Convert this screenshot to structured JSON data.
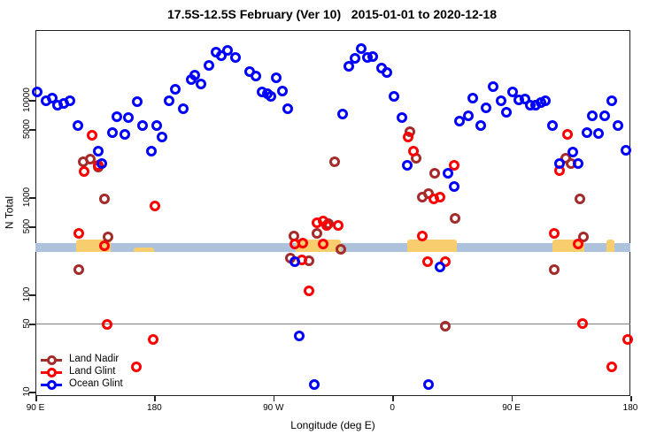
{
  "title": "17.5S-12.5S February (Ver 10)   2015-01-01 to 2020-12-18",
  "axes": {
    "x": {
      "label": "Longitude (deg E)",
      "ticks": [
        {
          "deg": 0,
          "label": "90 E"
        },
        {
          "deg": 90,
          "label": "180"
        },
        {
          "deg": 180,
          "label": "90 W"
        },
        {
          "deg": 270,
          "label": "0"
        },
        {
          "deg": 360,
          "label": "90 E"
        },
        {
          "deg": 450,
          "label": "180"
        }
      ],
      "range_deg": [
        0,
        450
      ]
    },
    "y": {
      "label": "N Total",
      "scale": "log",
      "ticks": [
        10,
        50,
        100,
        500,
        1000,
        5000,
        10000
      ],
      "range": [
        9,
        52000
      ]
    }
  },
  "legend": [
    {
      "label": "Land Nadir",
      "color": "#A52A2A"
    },
    {
      "label": "Land Glint",
      "color": "#FF0000"
    },
    {
      "label": "Ocean Glint",
      "color": "#0000FF"
    }
  ],
  "chart_data": {
    "type": "scatter",
    "title": "17.5S-12.5S February (Ver 10)   2015-01-01 to 2020-12-18",
    "xlabel": "Longitude (deg E)",
    "ylabel": "N Total",
    "x_axis_note": "x = degrees eastward along axis from left edge; left edge = 90 E, ticks every 90 deg: 90 E, 180, 90 W, 0, 90 E, 180",
    "y_axis_note": "log10 scale, N Total",
    "annotations": {
      "hline_n": 50,
      "band": {
        "n_low": 273,
        "n_high": 336,
        "color": "#ADC2DC",
        "note": "full-width light blue reference band"
      },
      "land_patches_deg": [
        [
          31,
          57
        ],
        [
          74,
          90
        ],
        [
          197,
          231
        ],
        [
          281,
          319
        ],
        [
          391,
          415
        ],
        [
          432,
          438
        ]
      ],
      "land_patch_color": "#F7CD6E"
    },
    "series": [
      {
        "name": "Land Nadir",
        "color": "#A52A2A",
        "points": [
          [
            35.5,
            2350
          ],
          [
            41.5,
            2500
          ],
          [
            47.5,
            2080
          ],
          [
            51.6,
            960
          ],
          [
            54.9,
            390
          ],
          [
            32.8,
            183
          ],
          [
            221,
            535
          ],
          [
            194.9,
            406
          ],
          [
            212.3,
            425
          ],
          [
            230.4,
            296
          ],
          [
            192.2,
            236
          ],
          [
            206.3,
            226
          ],
          [
            226.3,
            2350
          ],
          [
            282.6,
            4800
          ],
          [
            287.3,
            2550
          ],
          [
            302,
            1790
          ],
          [
            292,
            1020
          ],
          [
            297.3,
            1110
          ],
          [
            401.1,
            2550
          ],
          [
            405.1,
            2260
          ],
          [
            411.8,
            960
          ],
          [
            317.4,
            616
          ],
          [
            414.5,
            390
          ],
          [
            392.4,
            180
          ],
          [
            310,
            48
          ]
        ]
      },
      {
        "name": "Land Glint",
        "color": "#FF0000",
        "points": [
          [
            42.2,
            4340
          ],
          [
            36.8,
            1840
          ],
          [
            46.9,
            2130
          ],
          [
            90.4,
            812
          ],
          [
            32.8,
            424
          ],
          [
            51.6,
            322
          ],
          [
            54.2,
            50
          ],
          [
            88.4,
            35
          ],
          [
            76.3,
            18
          ],
          [
            217,
            580
          ],
          [
            212.3,
            545
          ],
          [
            220.3,
            512
          ],
          [
            229,
            512
          ],
          [
            196.2,
            330
          ],
          [
            201.6,
            337
          ],
          [
            217,
            330
          ],
          [
            200.9,
            231
          ],
          [
            206.3,
            111
          ],
          [
            281.9,
            4160
          ],
          [
            285.3,
            2970
          ],
          [
            301.3,
            960
          ],
          [
            306,
            1020
          ],
          [
            292,
            406
          ],
          [
            296.6,
            221
          ],
          [
            310,
            221
          ],
          [
            316.7,
            2130
          ],
          [
            396.4,
            1880
          ],
          [
            401.8,
            4430
          ],
          [
            392.4,
            424
          ],
          [
            410.4,
            330
          ],
          [
            413.8,
            51
          ],
          [
            447.9,
            35
          ],
          [
            435.9,
            18
          ]
        ]
      },
      {
        "name": "Ocean Glint",
        "color": "#0000FF",
        "points": [
          [
            0.7,
            12300
          ],
          [
            7.4,
            10000
          ],
          [
            12.7,
            10600
          ],
          [
            16.7,
            9000
          ],
          [
            20.8,
            9200
          ],
          [
            26.1,
            9800
          ],
          [
            32.1,
            5560
          ],
          [
            47.5,
            3030
          ],
          [
            50.2,
            2220
          ],
          [
            57.6,
            4610
          ],
          [
            61.6,
            6740
          ],
          [
            67,
            4430
          ],
          [
            70.3,
            6610
          ],
          [
            77,
            9600
          ],
          [
            81,
            5560
          ],
          [
            87.7,
            3030
          ],
          [
            91.1,
            5450
          ],
          [
            95.1,
            4160
          ],
          [
            101.1,
            9800
          ],
          [
            105.8,
            13100
          ],
          [
            111.2,
            8270
          ],
          [
            117.2,
            16300
          ],
          [
            120.5,
            18100
          ],
          [
            124.6,
            14700
          ],
          [
            130.6,
            22700
          ],
          [
            136.6,
            31600
          ],
          [
            140.6,
            29000
          ],
          [
            145.3,
            32300
          ],
          [
            150.7,
            27800
          ],
          [
            161.4,
            19900
          ],
          [
            166.7,
            17700
          ],
          [
            171.4,
            12300
          ],
          [
            174.8,
            11800
          ],
          [
            177.5,
            10900
          ],
          [
            181.5,
            17000
          ],
          [
            186.2,
            12500
          ],
          [
            190.8,
            8270
          ],
          [
            196.2,
            221
          ],
          [
            199.5,
            38
          ],
          [
            210.3,
            12
          ],
          [
            231.7,
            7160
          ],
          [
            236.4,
            22200
          ],
          [
            241.7,
            26800
          ],
          [
            245.8,
            33700
          ],
          [
            251.1,
            27800
          ],
          [
            255.1,
            28400
          ],
          [
            261.8,
            21300
          ],
          [
            265.8,
            19500
          ],
          [
            271.2,
            11100
          ],
          [
            276.6,
            6610
          ],
          [
            280.6,
            2130
          ],
          [
            297.3,
            12
          ],
          [
            306,
            195
          ],
          [
            311.4,
            1790
          ],
          [
            316.7,
            1310
          ],
          [
            320.7,
            6100
          ],
          [
            326.8,
            6900
          ],
          [
            330.8,
            10600
          ],
          [
            336.8,
            5560
          ],
          [
            340.8,
            8440
          ],
          [
            346.2,
            13700
          ],
          [
            352.2,
            9800
          ],
          [
            356.2,
            7600
          ],
          [
            360.9,
            12300
          ],
          [
            365.6,
            10200
          ],
          [
            370.3,
            10400
          ],
          [
            374.3,
            9000
          ],
          [
            378.3,
            9000
          ],
          [
            381.7,
            9400
          ],
          [
            385.7,
            10000
          ],
          [
            391,
            5560
          ],
          [
            396.4,
            2260
          ],
          [
            406.4,
            2930
          ],
          [
            410.4,
            2220
          ],
          [
            417.1,
            4610
          ],
          [
            421.2,
            6900
          ],
          [
            425.8,
            4520
          ],
          [
            430.5,
            6900
          ],
          [
            435.9,
            9800
          ],
          [
            440.6,
            5560
          ],
          [
            446.6,
            3090
          ]
        ]
      }
    ]
  }
}
